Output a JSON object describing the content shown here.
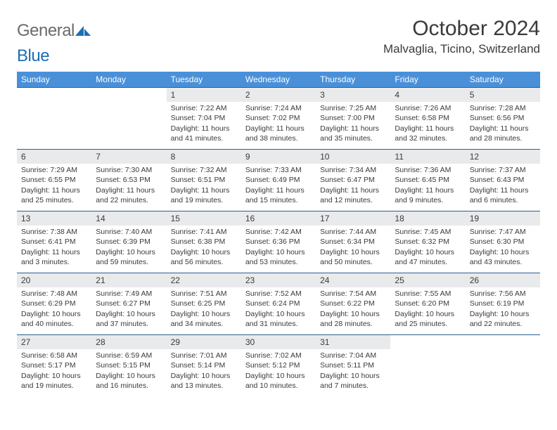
{
  "logo": {
    "general": "General",
    "blue": "Blue"
  },
  "title": "October 2024",
  "location": "Malvaglia, Ticino, Switzerland",
  "colors": {
    "header_bg": "#4a90d9",
    "header_text": "#ffffff",
    "row_border": "#2c5f91",
    "daynum_bg": "#e9eaeb",
    "text": "#3a3a3a",
    "logo_general": "#6b6b6b",
    "logo_blue": "#1e6db3"
  },
  "weekdays": [
    "Sunday",
    "Monday",
    "Tuesday",
    "Wednesday",
    "Thursday",
    "Friday",
    "Saturday"
  ],
  "weeks": [
    [
      {
        "empty": true
      },
      {
        "empty": true
      },
      {
        "num": "1",
        "sunrise": "Sunrise: 7:22 AM",
        "sunset": "Sunset: 7:04 PM",
        "daylight": "Daylight: 11 hours and 41 minutes."
      },
      {
        "num": "2",
        "sunrise": "Sunrise: 7:24 AM",
        "sunset": "Sunset: 7:02 PM",
        "daylight": "Daylight: 11 hours and 38 minutes."
      },
      {
        "num": "3",
        "sunrise": "Sunrise: 7:25 AM",
        "sunset": "Sunset: 7:00 PM",
        "daylight": "Daylight: 11 hours and 35 minutes."
      },
      {
        "num": "4",
        "sunrise": "Sunrise: 7:26 AM",
        "sunset": "Sunset: 6:58 PM",
        "daylight": "Daylight: 11 hours and 32 minutes."
      },
      {
        "num": "5",
        "sunrise": "Sunrise: 7:28 AM",
        "sunset": "Sunset: 6:56 PM",
        "daylight": "Daylight: 11 hours and 28 minutes."
      }
    ],
    [
      {
        "num": "6",
        "sunrise": "Sunrise: 7:29 AM",
        "sunset": "Sunset: 6:55 PM",
        "daylight": "Daylight: 11 hours and 25 minutes."
      },
      {
        "num": "7",
        "sunrise": "Sunrise: 7:30 AM",
        "sunset": "Sunset: 6:53 PM",
        "daylight": "Daylight: 11 hours and 22 minutes."
      },
      {
        "num": "8",
        "sunrise": "Sunrise: 7:32 AM",
        "sunset": "Sunset: 6:51 PM",
        "daylight": "Daylight: 11 hours and 19 minutes."
      },
      {
        "num": "9",
        "sunrise": "Sunrise: 7:33 AM",
        "sunset": "Sunset: 6:49 PM",
        "daylight": "Daylight: 11 hours and 15 minutes."
      },
      {
        "num": "10",
        "sunrise": "Sunrise: 7:34 AM",
        "sunset": "Sunset: 6:47 PM",
        "daylight": "Daylight: 11 hours and 12 minutes."
      },
      {
        "num": "11",
        "sunrise": "Sunrise: 7:36 AM",
        "sunset": "Sunset: 6:45 PM",
        "daylight": "Daylight: 11 hours and 9 minutes."
      },
      {
        "num": "12",
        "sunrise": "Sunrise: 7:37 AM",
        "sunset": "Sunset: 6:43 PM",
        "daylight": "Daylight: 11 hours and 6 minutes."
      }
    ],
    [
      {
        "num": "13",
        "sunrise": "Sunrise: 7:38 AM",
        "sunset": "Sunset: 6:41 PM",
        "daylight": "Daylight: 11 hours and 3 minutes."
      },
      {
        "num": "14",
        "sunrise": "Sunrise: 7:40 AM",
        "sunset": "Sunset: 6:39 PM",
        "daylight": "Daylight: 10 hours and 59 minutes."
      },
      {
        "num": "15",
        "sunrise": "Sunrise: 7:41 AM",
        "sunset": "Sunset: 6:38 PM",
        "daylight": "Daylight: 10 hours and 56 minutes."
      },
      {
        "num": "16",
        "sunrise": "Sunrise: 7:42 AM",
        "sunset": "Sunset: 6:36 PM",
        "daylight": "Daylight: 10 hours and 53 minutes."
      },
      {
        "num": "17",
        "sunrise": "Sunrise: 7:44 AM",
        "sunset": "Sunset: 6:34 PM",
        "daylight": "Daylight: 10 hours and 50 minutes."
      },
      {
        "num": "18",
        "sunrise": "Sunrise: 7:45 AM",
        "sunset": "Sunset: 6:32 PM",
        "daylight": "Daylight: 10 hours and 47 minutes."
      },
      {
        "num": "19",
        "sunrise": "Sunrise: 7:47 AM",
        "sunset": "Sunset: 6:30 PM",
        "daylight": "Daylight: 10 hours and 43 minutes."
      }
    ],
    [
      {
        "num": "20",
        "sunrise": "Sunrise: 7:48 AM",
        "sunset": "Sunset: 6:29 PM",
        "daylight": "Daylight: 10 hours and 40 minutes."
      },
      {
        "num": "21",
        "sunrise": "Sunrise: 7:49 AM",
        "sunset": "Sunset: 6:27 PM",
        "daylight": "Daylight: 10 hours and 37 minutes."
      },
      {
        "num": "22",
        "sunrise": "Sunrise: 7:51 AM",
        "sunset": "Sunset: 6:25 PM",
        "daylight": "Daylight: 10 hours and 34 minutes."
      },
      {
        "num": "23",
        "sunrise": "Sunrise: 7:52 AM",
        "sunset": "Sunset: 6:24 PM",
        "daylight": "Daylight: 10 hours and 31 minutes."
      },
      {
        "num": "24",
        "sunrise": "Sunrise: 7:54 AM",
        "sunset": "Sunset: 6:22 PM",
        "daylight": "Daylight: 10 hours and 28 minutes."
      },
      {
        "num": "25",
        "sunrise": "Sunrise: 7:55 AM",
        "sunset": "Sunset: 6:20 PM",
        "daylight": "Daylight: 10 hours and 25 minutes."
      },
      {
        "num": "26",
        "sunrise": "Sunrise: 7:56 AM",
        "sunset": "Sunset: 6:19 PM",
        "daylight": "Daylight: 10 hours and 22 minutes."
      }
    ],
    [
      {
        "num": "27",
        "sunrise": "Sunrise: 6:58 AM",
        "sunset": "Sunset: 5:17 PM",
        "daylight": "Daylight: 10 hours and 19 minutes."
      },
      {
        "num": "28",
        "sunrise": "Sunrise: 6:59 AM",
        "sunset": "Sunset: 5:15 PM",
        "daylight": "Daylight: 10 hours and 16 minutes."
      },
      {
        "num": "29",
        "sunrise": "Sunrise: 7:01 AM",
        "sunset": "Sunset: 5:14 PM",
        "daylight": "Daylight: 10 hours and 13 minutes."
      },
      {
        "num": "30",
        "sunrise": "Sunrise: 7:02 AM",
        "sunset": "Sunset: 5:12 PM",
        "daylight": "Daylight: 10 hours and 10 minutes."
      },
      {
        "num": "31",
        "sunrise": "Sunrise: 7:04 AM",
        "sunset": "Sunset: 5:11 PM",
        "daylight": "Daylight: 10 hours and 7 minutes."
      },
      {
        "empty": true
      },
      {
        "empty": true
      }
    ]
  ]
}
